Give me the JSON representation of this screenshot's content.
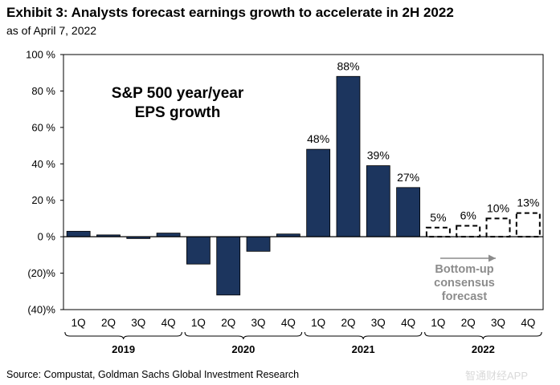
{
  "header": {
    "title": "Exhibit 3: Analysts forecast earnings growth to accelerate in 2H 2022",
    "subtitle": "as of April 7, 2022"
  },
  "footer": {
    "source": "Source: Compustat, Goldman Sachs Global Investment Research",
    "watermark": "智通财经APP"
  },
  "colors": {
    "bar": "#1c355e",
    "forecast_stroke": "#000000",
    "note": "#8c8c8c"
  },
  "chart_data": {
    "type": "bar",
    "title": "S&P 500 year/year",
    "title_line2": "EPS growth",
    "xlabel": "",
    "ylabel": "",
    "ylim": [
      -40,
      100
    ],
    "yticks": [
      -40,
      -20,
      0,
      20,
      40,
      60,
      80,
      100
    ],
    "ytick_labels": [
      "(40)%",
      "(20)%",
      "0 %",
      "20 %",
      "40 %",
      "60 %",
      "80 %",
      "100 %"
    ],
    "categories": [
      "1Q",
      "2Q",
      "3Q",
      "4Q",
      "1Q",
      "2Q",
      "3Q",
      "4Q",
      "1Q",
      "2Q",
      "3Q",
      "4Q",
      "1Q",
      "2Q",
      "3Q",
      "4Q"
    ],
    "years": [
      {
        "label": "2019",
        "span": [
          0,
          3
        ]
      },
      {
        "label": "2020",
        "span": [
          4,
          7
        ]
      },
      {
        "label": "2021",
        "span": [
          8,
          11
        ]
      },
      {
        "label": "2022",
        "span": [
          12,
          15
        ]
      }
    ],
    "values": [
      3,
      1,
      -1,
      2,
      -15,
      -32,
      -8,
      1.5,
      48,
      88,
      39,
      27,
      5,
      6,
      10,
      13
    ],
    "forecast": [
      false,
      false,
      false,
      false,
      false,
      false,
      false,
      false,
      false,
      false,
      false,
      false,
      true,
      true,
      true,
      true
    ],
    "data_labels": [
      "",
      "",
      "",
      "",
      "",
      "",
      "",
      "",
      "48%",
      "88%",
      "39%",
      "27%",
      "5%",
      "6%",
      "10%",
      "13%"
    ],
    "annotation": {
      "lines": [
        "Bottom-up",
        "consensus",
        "forecast"
      ]
    }
  }
}
